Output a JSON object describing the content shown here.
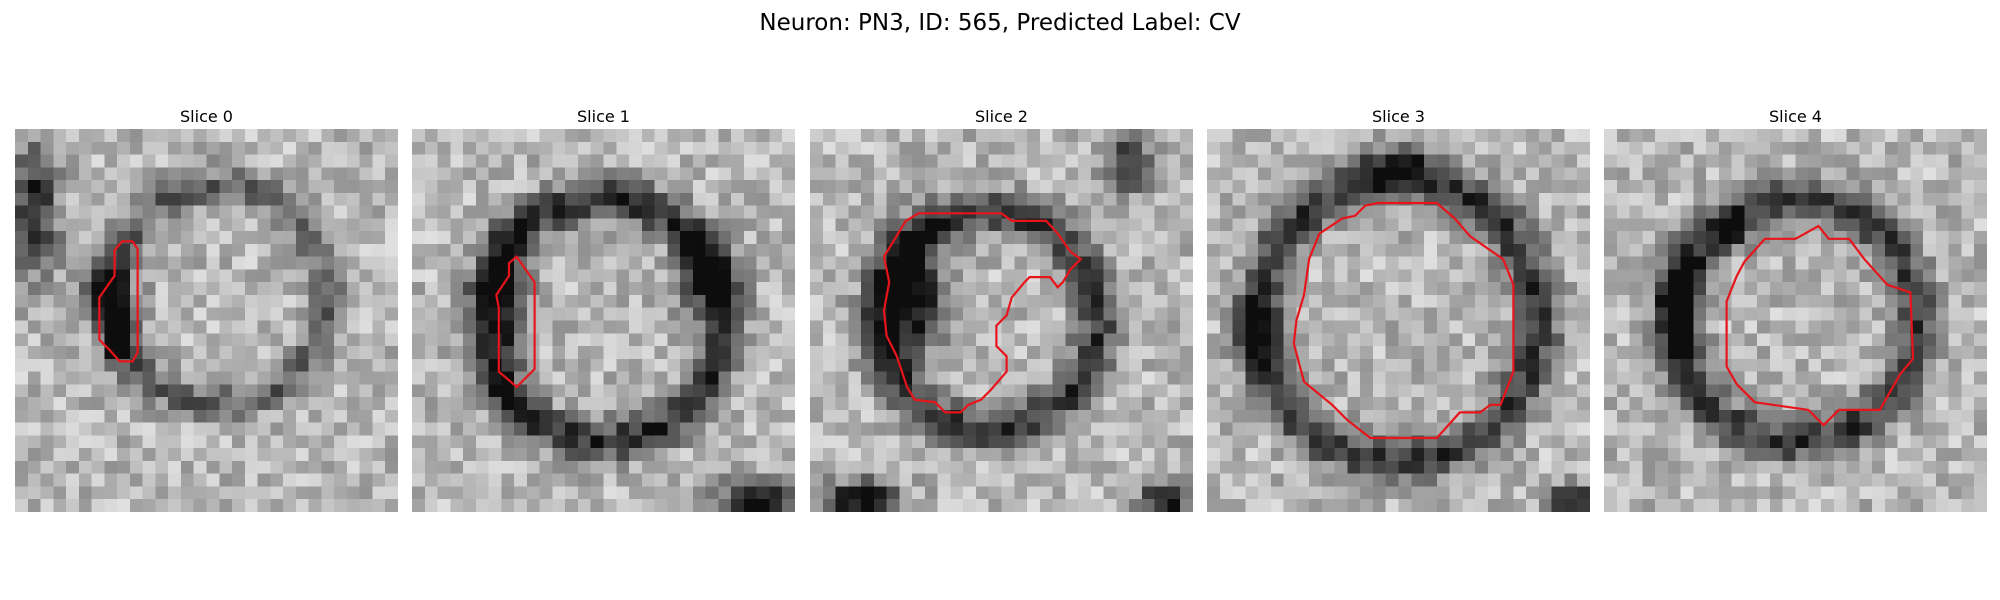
{
  "figure": {
    "title": "Neuron: PN3, ID: 565, Predicted Label: CV",
    "contour_color": "#e8141b",
    "colormap": "grayscale"
  },
  "panels": [
    {
      "title": "Slice 0"
    },
    {
      "title": "Slice 1"
    },
    {
      "title": "Slice 2"
    },
    {
      "title": "Slice 3"
    },
    {
      "title": "Slice 4"
    }
  ]
}
